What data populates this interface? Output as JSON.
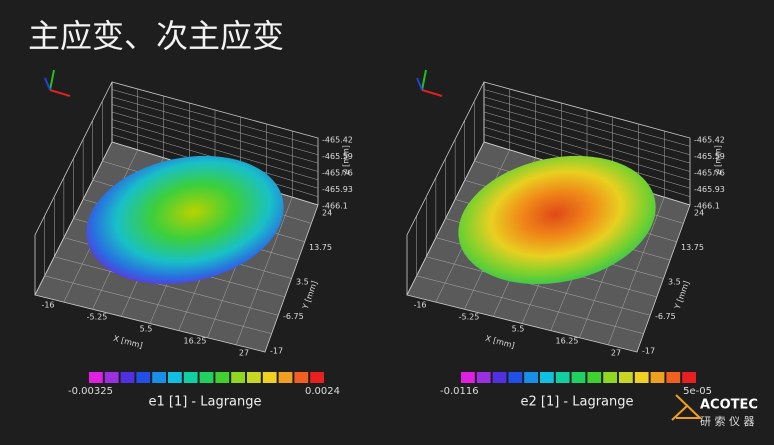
{
  "title": "主应变、次主应变",
  "plots": [
    {
      "x_axis": {
        "label": "X [mm]",
        "ticks": [
          "-16",
          "-5.25",
          "5.5",
          "16.25",
          "27"
        ]
      },
      "y_axis": {
        "label": "Y [mm]",
        "ticks": [
          "24",
          "13.75",
          "3.5",
          "-6.75",
          "-17"
        ]
      },
      "z_axis": {
        "label": "Z [mm]",
        "ticks": [
          "-465.42",
          "-465.59",
          "-465.76",
          "-465.93",
          "-466.1"
        ]
      },
      "colorbar": {
        "min": "-0.00325",
        "max": "0.0024",
        "label": "e1 [1] - Lagrange"
      }
    },
    {
      "x_axis": {
        "label": "X [mm]",
        "ticks": [
          "-16",
          "-5.25",
          "5.5",
          "16.25",
          "27"
        ]
      },
      "y_axis": {
        "label": "Y [mm]",
        "ticks": [
          "24",
          "13.75",
          "3.5",
          "-6.75",
          "-17"
        ]
      },
      "z_axis": {
        "label": "Z [mm]",
        "ticks": [
          "-465.42",
          "-465.59",
          "-465.76",
          "-465.93",
          "-466.1"
        ]
      },
      "colorbar": {
        "min": "-0.0116",
        "max": "5e-05",
        "label": "e2 [1] - Lagrange"
      }
    }
  ],
  "logo": {
    "name": "ACOTEC",
    "subtitle": "研 索 仪 器"
  }
}
